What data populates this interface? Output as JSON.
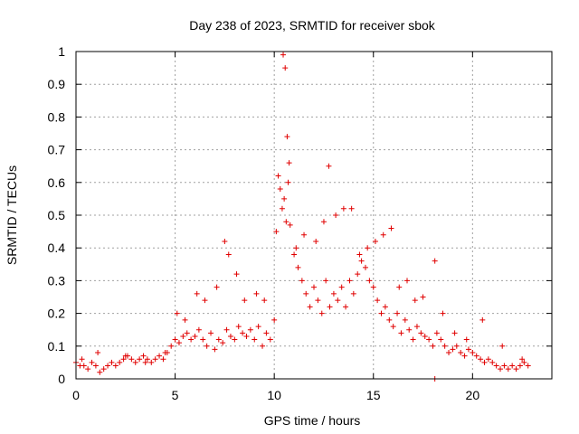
{
  "chart_data": {
    "type": "scatter",
    "title": "Day 238 of 2023, SRMTID for receiver sbok",
    "xlabel": "GPS time / hours",
    "ylabel": "SRMTID / TECUs",
    "xlim": [
      0,
      24
    ],
    "ylim": [
      0,
      1
    ],
    "xticks": [
      "0",
      "5",
      "10",
      "15",
      "20"
    ],
    "yticks": [
      "0",
      "0.1",
      "0.2",
      "0.3",
      "0.4",
      "0.5",
      "0.6",
      "0.7",
      "0.8",
      "0.9",
      "1"
    ],
    "grid": true,
    "marker": "plus",
    "series": [
      {
        "name": "SRMTID",
        "color": "#e00000",
        "x": [
          0.0,
          0.2,
          0.4,
          0.6,
          0.8,
          1.0,
          1.2,
          1.4,
          1.6,
          1.8,
          2.0,
          2.2,
          2.4,
          2.6,
          2.8,
          3.0,
          3.2,
          3.4,
          3.6,
          3.8,
          4.0,
          4.2,
          4.4,
          4.6,
          4.8,
          5.0,
          5.2,
          5.4,
          5.6,
          5.8,
          6.0,
          6.2,
          6.4,
          6.6,
          6.8,
          7.0,
          7.2,
          7.4,
          7.6,
          7.8,
          8.0,
          8.2,
          8.4,
          8.6,
          8.8,
          9.0,
          9.2,
          9.4,
          9.6,
          9.8,
          10.0,
          10.1,
          10.2,
          10.3,
          10.4,
          10.5,
          10.6,
          10.7,
          10.8,
          11.0,
          11.2,
          11.4,
          11.6,
          11.8,
          12.0,
          12.2,
          12.4,
          12.6,
          12.8,
          13.0,
          13.2,
          13.4,
          13.6,
          13.8,
          14.0,
          14.2,
          14.4,
          14.6,
          14.8,
          15.0,
          15.2,
          15.4,
          15.6,
          15.8,
          16.0,
          16.2,
          16.4,
          16.6,
          16.8,
          17.0,
          17.2,
          17.4,
          17.6,
          17.8,
          18.0,
          18.2,
          18.4,
          18.6,
          18.8,
          19.0,
          19.2,
          19.4,
          19.6,
          19.8,
          20.0,
          20.2,
          20.4,
          20.6,
          20.8,
          21.0,
          21.2,
          21.4,
          21.6,
          21.8,
          22.0,
          22.2,
          22.4,
          22.6,
          22.8,
          0.3,
          1.1,
          2.5,
          3.5,
          4.5,
          5.1,
          5.5,
          6.1,
          6.5,
          7.1,
          7.5,
          7.7,
          8.1,
          8.5,
          9.1,
          9.5,
          10.45,
          10.55,
          10.65,
          10.75,
          11.1,
          11.5,
          12.1,
          12.5,
          12.75,
          13.1,
          13.5,
          13.9,
          14.3,
          14.7,
          15.1,
          15.5,
          15.9,
          16.3,
          16.7,
          17.1,
          17.5,
          18.1,
          18.5,
          19.1,
          19.7,
          20.5,
          21.5,
          22.5,
          18.1
        ],
        "y": [
          0.05,
          0.04,
          0.04,
          0.03,
          0.05,
          0.04,
          0.02,
          0.03,
          0.04,
          0.05,
          0.04,
          0.05,
          0.06,
          0.07,
          0.06,
          0.05,
          0.06,
          0.07,
          0.06,
          0.05,
          0.06,
          0.07,
          0.06,
          0.08,
          0.1,
          0.12,
          0.11,
          0.13,
          0.14,
          0.12,
          0.13,
          0.15,
          0.12,
          0.1,
          0.14,
          0.09,
          0.12,
          0.11,
          0.15,
          0.13,
          0.12,
          0.16,
          0.14,
          0.13,
          0.15,
          0.12,
          0.16,
          0.1,
          0.14,
          0.12,
          0.18,
          0.45,
          0.62,
          0.58,
          0.52,
          0.55,
          0.48,
          0.6,
          0.47,
          0.38,
          0.34,
          0.3,
          0.26,
          0.22,
          0.28,
          0.24,
          0.2,
          0.3,
          0.22,
          0.26,
          0.24,
          0.28,
          0.22,
          0.3,
          0.26,
          0.32,
          0.36,
          0.34,
          0.3,
          0.28,
          0.24,
          0.2,
          0.22,
          0.18,
          0.16,
          0.2,
          0.14,
          0.18,
          0.15,
          0.12,
          0.16,
          0.14,
          0.13,
          0.12,
          0.1,
          0.14,
          0.12,
          0.1,
          0.08,
          0.09,
          0.1,
          0.08,
          0.07,
          0.09,
          0.08,
          0.07,
          0.06,
          0.05,
          0.06,
          0.05,
          0.04,
          0.03,
          0.04,
          0.03,
          0.04,
          0.03,
          0.04,
          0.05,
          0.04,
          0.06,
          0.08,
          0.07,
          0.05,
          0.08,
          0.2,
          0.18,
          0.26,
          0.24,
          0.28,
          0.42,
          0.38,
          0.32,
          0.24,
          0.26,
          0.24,
          0.99,
          0.95,
          0.74,
          0.66,
          0.4,
          0.44,
          0.42,
          0.48,
          0.65,
          0.5,
          0.52,
          0.52,
          0.38,
          0.4,
          0.42,
          0.44,
          0.46,
          0.28,
          0.3,
          0.24,
          0.25,
          0.36,
          0.2,
          0.14,
          0.12,
          0.18,
          0.1,
          0.06,
          0.0
        ]
      }
    ]
  }
}
